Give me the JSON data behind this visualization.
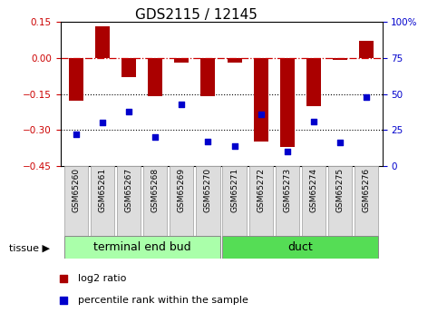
{
  "title": "GDS2115 / 12145",
  "samples": [
    "GSM65260",
    "GSM65261",
    "GSM65267",
    "GSM65268",
    "GSM65269",
    "GSM65270",
    "GSM65271",
    "GSM65272",
    "GSM65273",
    "GSM65274",
    "GSM65275",
    "GSM65276"
  ],
  "log2_ratio": [
    -0.18,
    0.13,
    -0.08,
    -0.16,
    -0.02,
    -0.16,
    -0.02,
    -0.35,
    -0.37,
    -0.2,
    -0.01,
    0.07
  ],
  "percentile_rank": [
    22,
    30,
    38,
    20,
    43,
    17,
    14,
    36,
    10,
    31,
    16,
    48
  ],
  "groups": [
    {
      "label": "terminal end bud",
      "start": 0,
      "end": 6,
      "color": "#AAFFAA"
    },
    {
      "label": "duct",
      "start": 6,
      "end": 12,
      "color": "#55DD55"
    }
  ],
  "ylim_left": [
    -0.45,
    0.15
  ],
  "ylim_right": [
    0,
    100
  ],
  "yticks_left": [
    -0.45,
    -0.3,
    -0.15,
    0,
    0.15
  ],
  "yticks_right": [
    0,
    25,
    50,
    75,
    100
  ],
  "bar_color": "#AA0000",
  "dot_color": "#0000CC",
  "hline_color": "#CC0000",
  "tissue_label": "tissue",
  "tissue_arrow": "▶",
  "legend_bar": "log2 ratio",
  "legend_dot": "percentile rank within the sample",
  "title_fontsize": 11,
  "tick_label_fontsize": 7.5,
  "sample_label_fontsize": 6.5,
  "group_label_fontsize": 9,
  "legend_fontsize": 8
}
